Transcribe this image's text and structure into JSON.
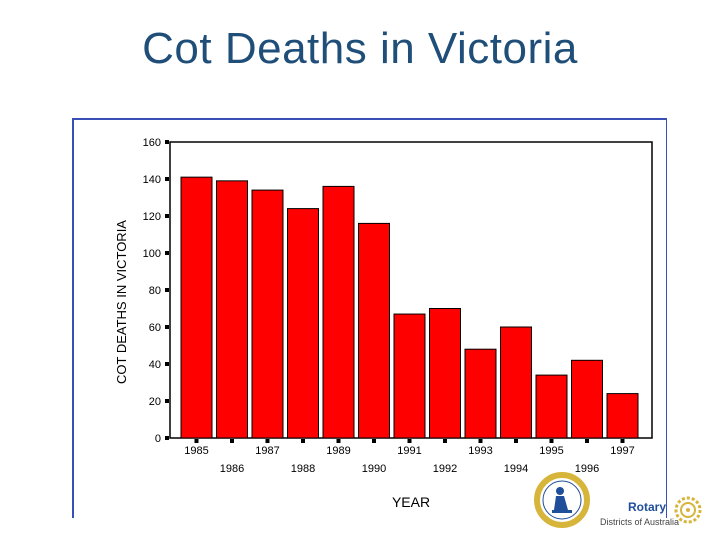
{
  "slide": {
    "title": "Cot Deaths in Victoria"
  },
  "chart_data": {
    "type": "bar",
    "categories": [
      "1985",
      "1986",
      "1987",
      "1988",
      "1989",
      "1990",
      "1991",
      "1992",
      "1993",
      "1994",
      "1995",
      "1996",
      "1997"
    ],
    "values": [
      141,
      139,
      134,
      124,
      136,
      116,
      67,
      70,
      48,
      60,
      34,
      42,
      24
    ],
    "title": "",
    "xlabel": "YEAR",
    "ylabel": "COT DEATHS IN VICTORIA",
    "ylim": [
      0,
      160
    ],
    "yticks": [
      0,
      20,
      40,
      60,
      80,
      100,
      120,
      140,
      160
    ],
    "bar_color": "#ff0000",
    "grid": false,
    "legend": "none"
  },
  "logos": {
    "rotary_name": "Rotary",
    "rotary_subtitle": "Districts of Australia",
    "brand_color": "#1f4e9a"
  }
}
